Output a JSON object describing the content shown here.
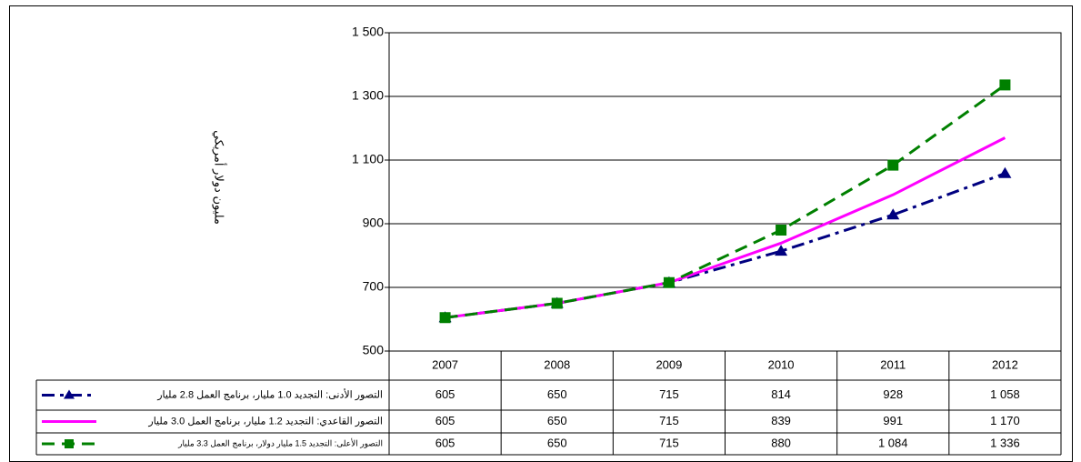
{
  "chart_data": {
    "type": "line",
    "y_label": "مليون دولار أمريكي",
    "categories": [
      "2007",
      "2008",
      "2009",
      "2010",
      "2011",
      "2012"
    ],
    "ylim": [
      500,
      1500
    ],
    "yticks": [
      {
        "value": 500,
        "label": "500"
      },
      {
        "value": 700,
        "label": "700"
      },
      {
        "value": 900,
        "label": "900"
      },
      {
        "value": 1100,
        "label": "1 100"
      },
      {
        "value": 1300,
        "label": "1 300"
      },
      {
        "value": 1500,
        "label": "1 500"
      }
    ],
    "grid": true,
    "series": [
      {
        "name": "التصور الأدنى: التجديد 1.0 مليار، برنامج العمل 2.8 مليار",
        "color": "#000080",
        "line_style": "dash-dot",
        "marker": "triangle",
        "values": [
          605,
          650,
          715,
          814,
          928,
          1058
        ],
        "value_labels": [
          "605",
          "650",
          "715",
          "814",
          "928",
          "1 058"
        ]
      },
      {
        "name": "التصور القاعدي: التجديد 1.2 مليار، برنامج العمل 3.0 مليار",
        "color": "#ff00ff",
        "line_style": "solid",
        "marker": "none",
        "values": [
          605,
          650,
          715,
          839,
          991,
          1170
        ],
        "value_labels": [
          "605",
          "650",
          "715",
          "839",
          "991",
          "1 170"
        ]
      },
      {
        "name": "التصور الأعلى: التجديد 1.5 مليار دولار، برنامج العمل 3.3 مليار",
        "color": "#008000",
        "line_style": "dash",
        "marker": "square",
        "values": [
          605,
          650,
          715,
          880,
          1084,
          1336
        ],
        "value_labels": [
          "605",
          "650",
          "715",
          "880",
          "1 084",
          "1 336"
        ]
      }
    ]
  }
}
